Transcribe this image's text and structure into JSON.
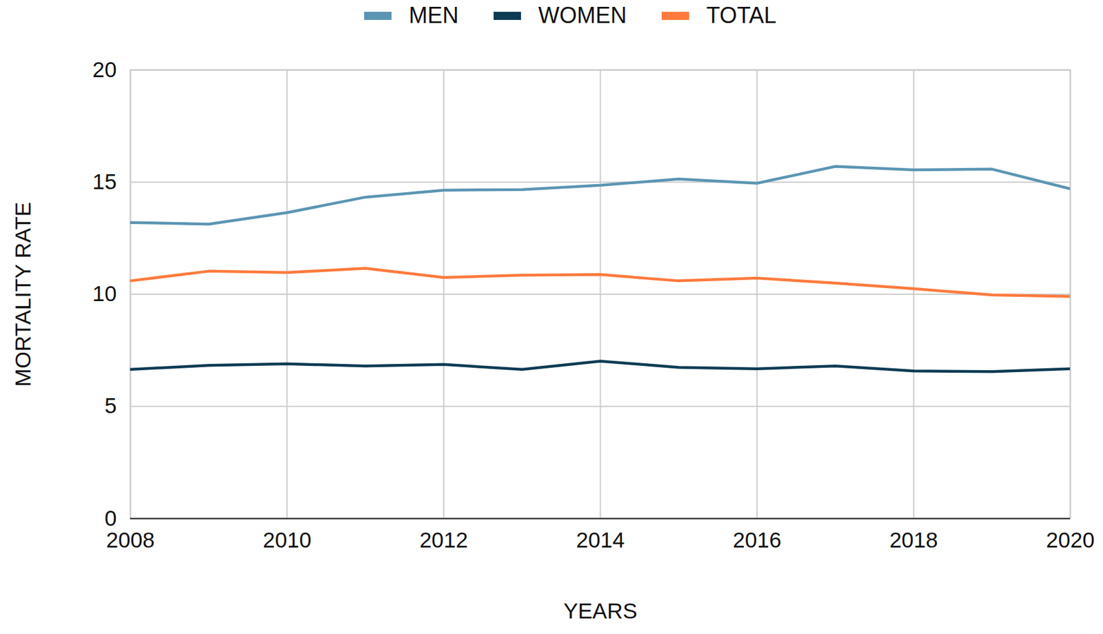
{
  "chart_data": {
    "type": "line",
    "x_label": "YEARS",
    "y_label": "MORTALITY RATE",
    "x": [
      2008,
      2009,
      2010,
      2011,
      2012,
      2013,
      2014,
      2015,
      2016,
      2017,
      2018,
      2019,
      2020
    ],
    "series": [
      {
        "name": "MEN",
        "color": "#5b95b3",
        "values": [
          13.2,
          13.13,
          13.64,
          14.33,
          14.64,
          14.67,
          14.86,
          15.14,
          14.95,
          15.7,
          15.55,
          15.58,
          14.7
        ]
      },
      {
        "name": "WOMEN",
        "color": "#0d3b54",
        "values": [
          6.65,
          6.83,
          6.9,
          6.8,
          6.87,
          6.65,
          7.02,
          6.74,
          6.68,
          6.8,
          6.58,
          6.55,
          6.68
        ]
      },
      {
        "name": "TOTAL",
        "color": "#ff7a3c",
        "values": [
          10.6,
          11.03,
          10.97,
          11.16,
          10.75,
          10.85,
          10.88,
          10.6,
          10.72,
          10.5,
          10.25,
          9.97,
          9.9
        ]
      }
    ],
    "xlim": [
      2008,
      2020
    ],
    "xticks": [
      2008,
      2010,
      2012,
      2014,
      2016,
      2018,
      2020
    ],
    "ylim": [
      0,
      20
    ],
    "yticks": [
      0,
      5,
      10,
      15,
      20
    ],
    "grid": true,
    "legend": "top"
  }
}
